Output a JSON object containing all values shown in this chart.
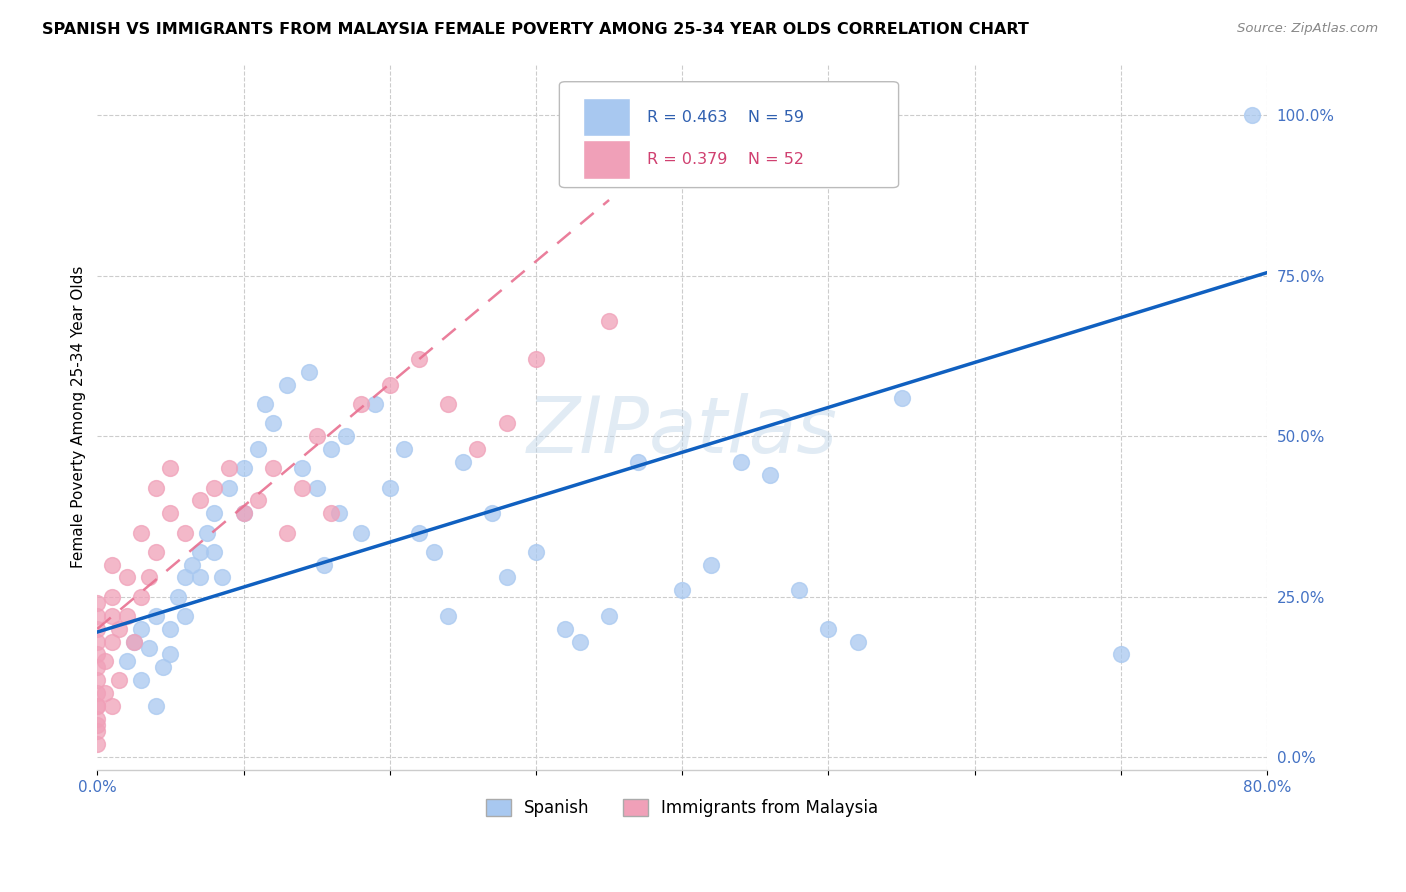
{
  "title": "SPANISH VS IMMIGRANTS FROM MALAYSIA FEMALE POVERTY AMONG 25-34 YEAR OLDS CORRELATION CHART",
  "source": "Source: ZipAtlas.com",
  "ylabel": "Female Poverty Among 25-34 Year Olds",
  "xlim": [
    0.0,
    0.8
  ],
  "ylim": [
    -0.02,
    1.08
  ],
  "x_tick_positions": [
    0.0,
    0.1,
    0.2,
    0.3,
    0.4,
    0.5,
    0.6,
    0.7,
    0.8
  ],
  "x_tick_labels": [
    "0.0%",
    "",
    "",
    "",
    "",
    "",
    "",
    "",
    "80.0%"
  ],
  "y_ticks_right": [
    0.0,
    0.25,
    0.5,
    0.75,
    1.0
  ],
  "y_tick_labels_right": [
    "0.0%",
    "25.0%",
    "50.0%",
    "75.0%",
    "100.0%"
  ],
  "watermark": "ZIPatlas",
  "color_spanish": "#A8C8F0",
  "color_malaysia": "#F0A0B8",
  "color_line_spanish": "#1060C0",
  "color_line_malaysia": "#E87090",
  "background_color": "#FFFFFF",
  "spanish_x": [
    0.02,
    0.025,
    0.03,
    0.03,
    0.035,
    0.04,
    0.04,
    0.045,
    0.05,
    0.05,
    0.055,
    0.06,
    0.06,
    0.065,
    0.07,
    0.07,
    0.075,
    0.08,
    0.08,
    0.085,
    0.09,
    0.1,
    0.1,
    0.11,
    0.115,
    0.12,
    0.13,
    0.14,
    0.145,
    0.15,
    0.155,
    0.16,
    0.165,
    0.17,
    0.18,
    0.19,
    0.2,
    0.21,
    0.22,
    0.23,
    0.24,
    0.25,
    0.27,
    0.28,
    0.3,
    0.32,
    0.33,
    0.35,
    0.37,
    0.4,
    0.42,
    0.44,
    0.46,
    0.48,
    0.5,
    0.52,
    0.55,
    0.7,
    0.79
  ],
  "spanish_y": [
    0.15,
    0.18,
    0.12,
    0.2,
    0.17,
    0.22,
    0.08,
    0.14,
    0.16,
    0.2,
    0.25,
    0.28,
    0.22,
    0.3,
    0.32,
    0.28,
    0.35,
    0.38,
    0.32,
    0.28,
    0.42,
    0.45,
    0.38,
    0.48,
    0.55,
    0.52,
    0.58,
    0.45,
    0.6,
    0.42,
    0.3,
    0.48,
    0.38,
    0.5,
    0.35,
    0.55,
    0.42,
    0.48,
    0.35,
    0.32,
    0.22,
    0.46,
    0.38,
    0.28,
    0.32,
    0.2,
    0.18,
    0.22,
    0.46,
    0.26,
    0.3,
    0.46,
    0.44,
    0.26,
    0.2,
    0.18,
    0.56,
    0.16,
    1.0
  ],
  "malaysia_x": [
    0.0,
    0.0,
    0.0,
    0.0,
    0.0,
    0.0,
    0.0,
    0.0,
    0.0,
    0.0,
    0.0,
    0.0,
    0.0,
    0.0,
    0.005,
    0.005,
    0.01,
    0.01,
    0.01,
    0.01,
    0.01,
    0.015,
    0.015,
    0.02,
    0.02,
    0.025,
    0.03,
    0.03,
    0.035,
    0.04,
    0.04,
    0.05,
    0.05,
    0.06,
    0.07,
    0.08,
    0.09,
    0.1,
    0.11,
    0.12,
    0.13,
    0.14,
    0.15,
    0.16,
    0.18,
    0.2,
    0.22,
    0.24,
    0.26,
    0.28,
    0.3,
    0.35
  ],
  "malaysia_y": [
    0.02,
    0.04,
    0.06,
    0.08,
    0.1,
    0.12,
    0.14,
    0.16,
    0.18,
    0.2,
    0.22,
    0.24,
    0.05,
    0.08,
    0.1,
    0.15,
    0.18,
    0.22,
    0.25,
    0.3,
    0.08,
    0.12,
    0.2,
    0.22,
    0.28,
    0.18,
    0.25,
    0.35,
    0.28,
    0.32,
    0.42,
    0.38,
    0.45,
    0.35,
    0.4,
    0.42,
    0.45,
    0.38,
    0.4,
    0.45,
    0.35,
    0.42,
    0.5,
    0.38,
    0.55,
    0.58,
    0.62,
    0.55,
    0.48,
    0.52,
    0.62,
    0.68
  ],
  "spanish_line_x": [
    0.0,
    0.8
  ],
  "spanish_line_y": [
    0.195,
    0.755
  ],
  "malaysia_line_x": [
    0.0,
    0.22
  ],
  "malaysia_line_y": [
    0.2,
    0.62
  ]
}
